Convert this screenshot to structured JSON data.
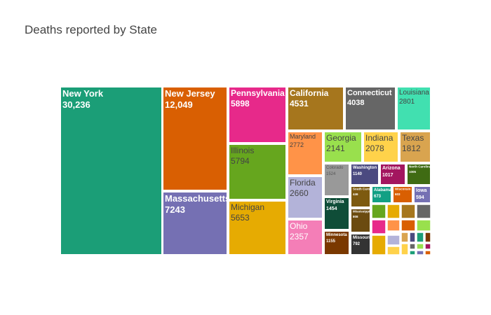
{
  "chart_data": {
    "type": "treemap",
    "title": "Deaths reported by State",
    "tiles": [
      {
        "label": "New York",
        "value": "30,236",
        "color": "#1b9e77",
        "text_color": "#ffffff",
        "bold": true
      },
      {
        "label": "New Jersey",
        "value": "12,049",
        "color": "#d95f02",
        "text_color": "#ffffff",
        "bold": true
      },
      {
        "label": "Massachusetts",
        "value": "7243",
        "color": "#7570b3",
        "text_color": "#ffffff",
        "bold": true
      },
      {
        "label": "Pennsylvania",
        "value": "5898",
        "color": "#e7298a",
        "text_color": "#ffffff",
        "bold": true
      },
      {
        "label": "Illinois",
        "value": "5794",
        "color": "#66a61e",
        "text_color": "#444444",
        "bold": false
      },
      {
        "label": "Michigan",
        "value": "5653",
        "color": "#e6ab02",
        "text_color": "#444444",
        "bold": false
      },
      {
        "label": "California",
        "value": "4531",
        "color": "#a6761d",
        "text_color": "#ffffff",
        "bold": true
      },
      {
        "label": "Connecticut",
        "value": "4038",
        "color": "#666666",
        "text_color": "#ffffff",
        "bold": true
      },
      {
        "label": "Louisiana",
        "value": "2801",
        "color": "#41e0b0",
        "text_color": "#444444",
        "bold": false
      },
      {
        "label": "Maryland",
        "value": "2772",
        "color": "#ff9348",
        "text_color": "#444444",
        "bold": false
      },
      {
        "label": "Georgia",
        "value": "2141",
        "color": "#99e04d",
        "text_color": "#444444",
        "bold": false
      },
      {
        "label": "Indiana",
        "value": "2078",
        "color": "#ffd24a",
        "text_color": "#444444",
        "bold": false
      },
      {
        "label": "Texas",
        "value": "1812",
        "color": "#d9a44f",
        "text_color": "#444444",
        "bold": false
      },
      {
        "label": "Florida",
        "value": "2660",
        "color": "#b3b3d9",
        "text_color": "#444444",
        "bold": false
      },
      {
        "label": "Ohio",
        "value": "2357",
        "color": "#f47eb7",
        "text_color": "#ffffff",
        "bold": false
      },
      {
        "label": "Colorado",
        "value": "1524",
        "color": "#999999",
        "text_color": "#555555",
        "bold": false
      },
      {
        "label": "Washington",
        "value": "1140",
        "color": "#4b4a80",
        "text_color": "#ffffff",
        "bold": true
      },
      {
        "label": "Arizona",
        "value": "1017",
        "color": "#a3165f",
        "text_color": "#ffffff",
        "bold": true
      },
      {
        "label": "North Carolina",
        "value": "1005",
        "color": "#3f6b13",
        "text_color": "#ffffff",
        "bold": true
      },
      {
        "label": "Virginia",
        "value": "1454",
        "color": "#0f4d38",
        "text_color": "#ffffff",
        "bold": true
      },
      {
        "label": "South Carolina",
        "value": "446",
        "color": "#7d5a10",
        "text_color": "#ffffff",
        "bold": true
      },
      {
        "label": "Alabama",
        "value": "673",
        "color": "#12a084",
        "text_color": "#ffffff",
        "bold": true
      },
      {
        "label": "Wisconsin",
        "value": "603",
        "color": "#d95f02",
        "text_color": "#ffffff",
        "bold": true
      },
      {
        "label": "Iowa",
        "value": "594",
        "color": "#7570b3",
        "text_color": "#ffffff",
        "bold": true
      },
      {
        "label": "Mississippi",
        "value": "808",
        "color": "#6b4b10",
        "text_color": "#ffffff",
        "bold": true
      },
      {
        "label": "Minnesota",
        "value": "1155",
        "color": "#7a3800",
        "text_color": "#ffffff",
        "bold": true
      },
      {
        "label": "Missouri",
        "value": "792",
        "color": "#333333",
        "text_color": "#ffffff",
        "bold": true
      }
    ]
  }
}
